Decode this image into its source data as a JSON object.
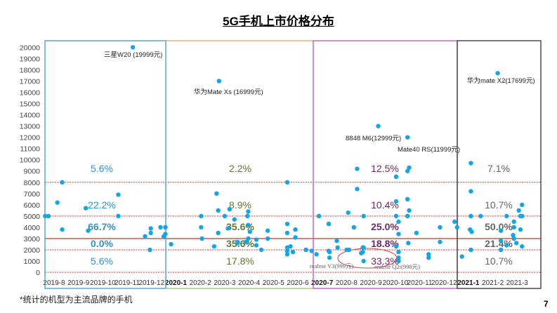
{
  "title": "5G手机上市价格分布",
  "footnote": "*统计的机型为主流品牌的手机",
  "page_number": "7",
  "chart_data": {
    "type": "scatter",
    "title": "5G手机上市价格分布",
    "xlabel": "",
    "ylabel": "",
    "ylim": [
      0,
      20000
    ],
    "yticks": [
      0,
      1000,
      2000,
      3000,
      4000,
      5000,
      6000,
      7000,
      8000,
      9000,
      10000,
      11000,
      12000,
      13000,
      14000,
      15000,
      16000,
      17000,
      18000,
      19000,
      20000
    ],
    "xtick_labels": [
      "2019-8",
      "2019-9",
      "2019-10",
      "2019-11",
      "2019-12",
      "2020-1",
      "2020-2",
      "2020-3",
      "2020-4",
      "2020-5",
      "2020-6",
      "2020-7",
      "2020-8",
      "2020-9",
      "2020-10",
      "2020-11",
      "2020-12",
      "2021-1",
      "2021-2",
      "2021-3"
    ],
    "bold_xticks": [
      "2020-1",
      "2020-7",
      "2021-1"
    ],
    "grid": false,
    "reference_lines": [
      {
        "y": 0,
        "style": "dotted",
        "color": "#e03030"
      },
      {
        "y": 2000,
        "style": "dotted",
        "color": "#e03030"
      },
      {
        "y": 3000,
        "style": "solid",
        "color": "#e03030"
      },
      {
        "y": 5000,
        "style": "dotted",
        "color": "#e03030"
      },
      {
        "y": 8000,
        "style": "dotted",
        "color": "#e03030"
      }
    ],
    "point_color": "#12a6e8",
    "periods": [
      {
        "start": "2019-8",
        "end": "2019-12",
        "color": "#3a9bd0",
        "text_color": "#2f93c8",
        "shares": [
          "5.6%",
          "22.2%",
          "66.7%",
          "0.0%",
          "5.6%"
        ]
      },
      {
        "start": "2020-1",
        "end": "2020-6",
        "color": "#d9a35a",
        "text_color": "#5d7a2e",
        "shares": [
          "2.2%",
          "8.9%",
          "35.6%",
          "35.6%",
          "17.8%"
        ]
      },
      {
        "start": "2020-7",
        "end": "2020-12",
        "color": "#c050c8",
        "text_color": "#6b2a6b",
        "shares": [
          "12.5%",
          "10.4%",
          "25.0%",
          "18.8%",
          "33.3%"
        ]
      },
      {
        "start": "2021-1",
        "end": "2021-3",
        "color": "#333333",
        "text_color": "#666666",
        "shares": [
          "7.1%",
          "10.7%",
          "50.0%",
          "21.4%",
          "10.7%"
        ]
      }
    ],
    "band_labels_order": [
      ">8000",
      "5000-8000",
      "3000-5000",
      "2000-3000",
      "<2000"
    ],
    "annotations": [
      {
        "text": "三星W20 (19999元)",
        "x": "2019-11-22",
        "y": 19999
      },
      {
        "text": "华为Mate Xs (16999元)",
        "x": "2020-03-08",
        "y": 16999
      },
      {
        "text": "8848 M6(12999元)",
        "x": "2020-09-24",
        "y": 12999
      },
      {
        "text": "Mate40 RS(11999元)",
        "x": "2020-10-30",
        "y": 11999
      },
      {
        "text": "华为mate X2(17699元)",
        "x": "2021-02-21",
        "y": 17699
      },
      {
        "text": "realme V3(999元)",
        "x": "2020-09-06",
        "y": 999
      },
      {
        "text": "realme Q2i(998元)",
        "x": "2020-10-19",
        "y": 998
      }
    ],
    "points": [
      [
        "2019-08-04",
        5000
      ],
      [
        "2019-08-08",
        5000
      ],
      [
        "2019-08-19",
        6200
      ],
      [
        "2019-08-25",
        8000
      ],
      [
        "2019-08-25",
        3800
      ],
      [
        "2019-09-24",
        5700
      ],
      [
        "2019-09-27",
        3700
      ],
      [
        "2019-11-04",
        6900
      ],
      [
        "2019-11-04",
        5000
      ],
      [
        "2019-11-22",
        19999
      ],
      [
        "2019-12-07",
        3200
      ],
      [
        "2019-12-14",
        3900
      ],
      [
        "2019-12-14",
        3500
      ],
      [
        "2019-12-13",
        2000
      ],
      [
        "2019-12-26",
        4000
      ],
      [
        "2019-12-30",
        3200
      ],
      [
        "2020-01-02",
        4000
      ],
      [
        "2020-01-02",
        3400
      ],
      [
        "2020-01-09",
        2500
      ],
      [
        "2020-02-16",
        5000
      ],
      [
        "2020-02-16",
        4000
      ],
      [
        "2020-02-17",
        3000
      ],
      [
        "2020-03-05",
        7000
      ],
      [
        "2020-03-07",
        5500
      ],
      [
        "2020-03-08",
        16999
      ],
      [
        "2020-03-15",
        5000
      ],
      [
        "2020-03-07",
        3500
      ],
      [
        "2020-03-02",
        2300
      ],
      [
        "2020-03-27",
        4700
      ],
      [
        "2020-03-19",
        3900
      ],
      [
        "2020-03-21",
        5600
      ],
      [
        "2020-03-31",
        2600
      ],
      [
        "2020-04-01",
        2700
      ],
      [
        "2020-04-11",
        2700
      ],
      [
        "2020-04-13",
        5000
      ],
      [
        "2020-04-14",
        5400
      ],
      [
        "2020-04-14",
        4200
      ],
      [
        "2020-04-14",
        3000
      ],
      [
        "2020-04-16",
        3600
      ],
      [
        "2020-04-24",
        2900
      ],
      [
        "2020-04-24",
        2400
      ],
      [
        "2020-04-30",
        2000
      ],
      [
        "2020-05-08",
        3700
      ],
      [
        "2020-05-08",
        3000
      ],
      [
        "2020-06-02",
        8000
      ],
      [
        "2020-06-02",
        4300
      ],
      [
        "2020-06-02",
        3500
      ],
      [
        "2020-06-02",
        2200
      ],
      [
        "2020-06-02",
        1900
      ],
      [
        "2020-06-02",
        1600
      ],
      [
        "2020-06-06",
        2300
      ],
      [
        "2020-06-12",
        3100
      ],
      [
        "2020-06-12",
        3800
      ],
      [
        "2020-06-09",
        1800
      ],
      [
        "2020-06-25",
        2000
      ],
      [
        "2020-07-02",
        1900
      ],
      [
        "2020-07-08",
        1600
      ],
      [
        "2020-07-11",
        5000
      ],
      [
        "2020-07-23",
        4300
      ],
      [
        "2020-07-23",
        1900
      ],
      [
        "2020-07-24",
        1800
      ],
      [
        "2020-07-24",
        1300
      ],
      [
        "2020-08-03",
        2800
      ],
      [
        "2020-08-04",
        2200
      ],
      [
        "2020-08-15",
        2000
      ],
      [
        "2020-08-18",
        2000
      ],
      [
        "2020-08-17",
        5300
      ],
      [
        "2020-08-24",
        4000
      ],
      [
        "2020-08-28",
        9200
      ],
      [
        "2020-08-28",
        7400
      ],
      [
        "2020-09-03",
        1700
      ],
      [
        "2020-09-05",
        1800
      ],
      [
        "2020-09-05",
        2200
      ],
      [
        "2020-09-06",
        2200
      ],
      [
        "2020-09-06",
        999
      ],
      [
        "2020-09-06",
        5000
      ],
      [
        "2020-09-24",
        12999
      ],
      [
        "2020-10-16",
        8500
      ],
      [
        "2020-10-16",
        6300
      ],
      [
        "2020-10-16",
        5000
      ],
      [
        "2020-10-16",
        2300
      ],
      [
        "2020-10-19",
        4500
      ],
      [
        "2020-10-19",
        3400
      ],
      [
        "2020-10-19",
        1800
      ],
      [
        "2020-10-19",
        1300
      ],
      [
        "2020-10-19",
        998
      ],
      [
        "2020-10-30",
        11999
      ],
      [
        "2020-10-30",
        9000
      ],
      [
        "2020-11-02",
        9300
      ],
      [
        "2020-10-30",
        6500
      ],
      [
        "2020-10-30",
        5000
      ],
      [
        "2020-11-02",
        5500
      ],
      [
        "2020-10-31",
        2600
      ],
      [
        "2020-11-11",
        3500
      ],
      [
        "2020-11-26",
        1600
      ],
      [
        "2020-11-26",
        1300
      ],
      [
        "2020-12-10",
        4000
      ],
      [
        "2020-12-10",
        2700
      ],
      [
        "2020-12-28",
        4500
      ],
      [
        "2021-01-01",
        4000
      ],
      [
        "2021-01-07",
        1400
      ],
      [
        "2021-01-18",
        9700
      ],
      [
        "2021-01-18",
        7200
      ],
      [
        "2021-01-18",
        5000
      ],
      [
        "2021-01-17",
        3800
      ],
      [
        "2021-01-19",
        3600
      ],
      [
        "2021-01-18",
        2000
      ],
      [
        "2021-01-30",
        5000
      ],
      [
        "2021-02-21",
        17699
      ],
      [
        "2021-03-02",
        5000
      ],
      [
        "2021-02-25",
        3700
      ],
      [
        "2021-02-25",
        2800
      ],
      [
        "2021-02-25",
        2000
      ],
      [
        "2021-03-02",
        2400
      ],
      [
        "2021-03-11",
        4500
      ],
      [
        "2021-03-11",
        4000
      ],
      [
        "2021-03-10",
        3300
      ],
      [
        "2021-03-11",
        3000
      ],
      [
        "2021-03-14",
        2600
      ],
      [
        "2021-03-17",
        5500
      ],
      [
        "2021-03-19",
        5000
      ],
      [
        "2021-03-21",
        5000
      ],
      [
        "2021-03-21",
        6000
      ],
      [
        "2021-03-19",
        3800
      ],
      [
        "2021-03-21",
        2300
      ]
    ]
  }
}
